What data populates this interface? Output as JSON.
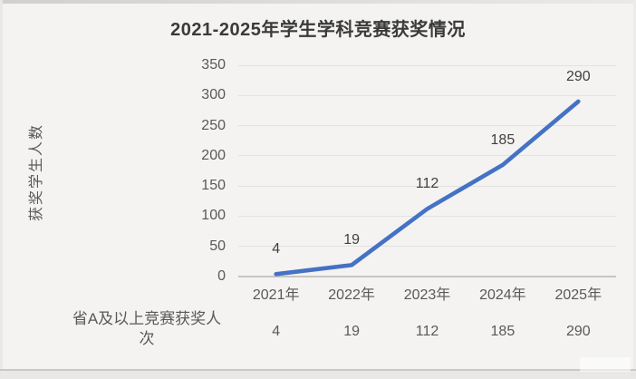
{
  "chart_data": {
    "type": "line",
    "title": "2021-2025年学生学科竞赛获奖情况",
    "ylabel": "获奖学生人数",
    "xlabel": "",
    "categories": [
      "2021年",
      "2022年",
      "2023年",
      "2024年",
      "2025年"
    ],
    "series": [
      {
        "name": "省A及以上竞赛获奖人次",
        "values": [
          4,
          19,
          112,
          185,
          290
        ]
      }
    ],
    "data_labels": [
      "4",
      "19",
      "112",
      "185",
      "290"
    ],
    "table_values": [
      "4",
      "19",
      "112",
      "185",
      "290"
    ],
    "yticks": [
      0,
      50,
      100,
      150,
      200,
      250,
      300,
      350
    ],
    "ylim": [
      0,
      350
    ],
    "grid": true,
    "legend_position": "data-table-below",
    "line_color": "#4472C4"
  },
  "colors": {
    "line": "#4472C4",
    "title_text": "#3a3a3a",
    "axis_text": "#595959",
    "data_label_text": "#404040",
    "gridline": "#e3e2e1",
    "axis_line": "#c6c5c4",
    "background": "#f4f3f2"
  }
}
